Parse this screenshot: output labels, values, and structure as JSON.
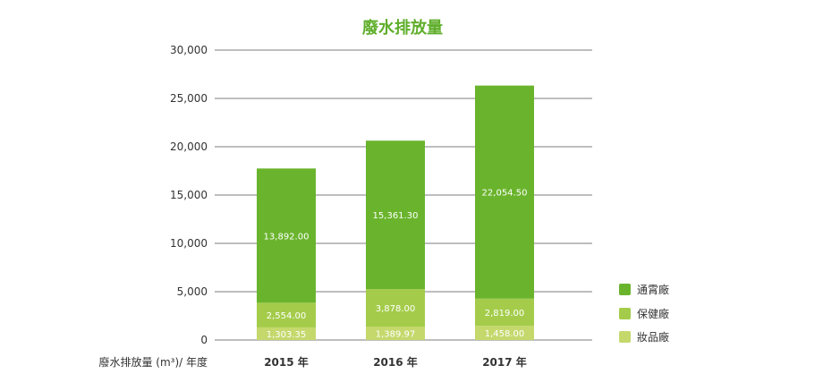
{
  "chart_data": {
    "type": "bar",
    "stacked": true,
    "title": "廢水排放量",
    "xlabel": "廢水排放量 (m³)/ 年度",
    "ylabel": "",
    "categories": [
      "2015 年",
      "2016 年",
      "2017 年"
    ],
    "ylim": [
      0,
      30000
    ],
    "yticks": [
      "0",
      "5,000",
      "10,000",
      "15,000",
      "20,000",
      "25,000",
      "30,000"
    ],
    "ytick_values": [
      0,
      5000,
      10000,
      15000,
      20000,
      25000,
      30000
    ],
    "grid": true,
    "legend_position": "right-bottom",
    "series": [
      {
        "name": "妝品廠",
        "color": "#c4d86c",
        "values": [
          1303.35,
          1389.97,
          1458.0
        ],
        "labels": [
          "1,303.35",
          "1,389.97",
          "1,458.00"
        ]
      },
      {
        "name": "保健廠",
        "color": "#a4cc4a",
        "values": [
          2554.0,
          3878.0,
          2819.0
        ],
        "labels": [
          "2,554.00",
          "3,878.00",
          "2,819.00"
        ]
      },
      {
        "name": "通霄廠",
        "color": "#6ab42d",
        "values": [
          13892.0,
          15361.3,
          22054.5
        ],
        "labels": [
          "13,892.00",
          "15,361.30",
          "22,054.50"
        ]
      }
    ],
    "legend_order": [
      "通霄廠",
      "保健廠",
      "妝品廠"
    ]
  }
}
